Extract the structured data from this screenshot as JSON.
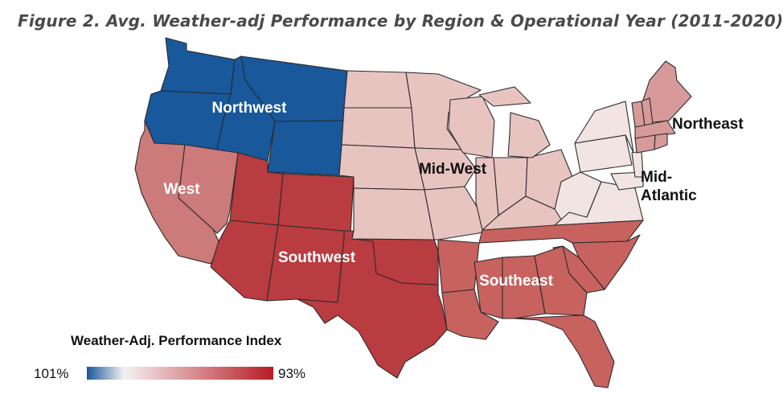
{
  "title": "Figure 2. Avg. Weather-adj Performance by Region & Operational Year (2011-2020)",
  "regions": [
    {
      "id": "northwest",
      "label": "Northwest",
      "color": "#18589b"
    },
    {
      "id": "west",
      "label": "West",
      "color": "#cd7a7a"
    },
    {
      "id": "southwest",
      "label": "Southwest",
      "color": "#b93c40"
    },
    {
      "id": "midwest",
      "label": "Mid-West",
      "color": "#e8c4c1"
    },
    {
      "id": "southeast",
      "label": "Southeast",
      "color": "#c7625f"
    },
    {
      "id": "midatlantic",
      "label": "Mid-Atlantic",
      "label_lines": [
        "Mid-",
        "Atlantic"
      ],
      "color": "#f1e4e2"
    },
    {
      "id": "northeast",
      "label": "Northeast",
      "color": "#d8999a"
    }
  ],
  "legend": {
    "title": "Weather-Adj. Performance Index",
    "min_label": "101%",
    "max_label": "93%",
    "min_color": "#18589b",
    "mid_color": "#f4f1f1",
    "max_color": "#b71c24"
  }
}
